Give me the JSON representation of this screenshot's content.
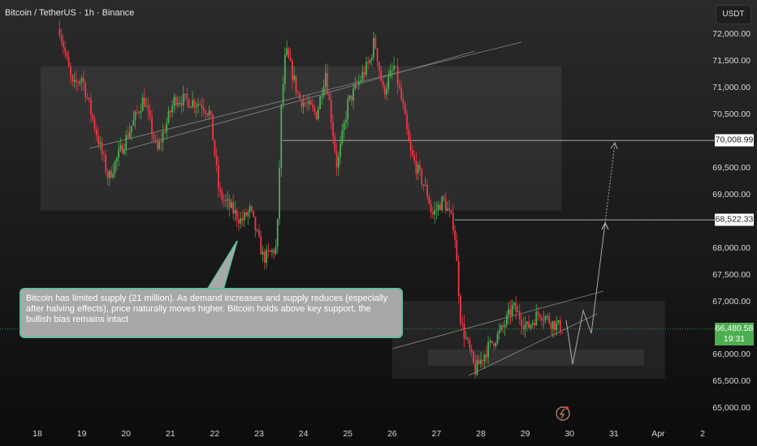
{
  "header": {
    "title": "Bitcoin / TetherUS · 1h · Binance",
    "currency": "USDT"
  },
  "colors": {
    "up": "#4caf50",
    "down": "#f23645",
    "background": "#1f1f1f",
    "annotation_border": "#5fbf9f"
  },
  "chart_data": {
    "type": "candlestick",
    "title": "Bitcoin / TetherUS · 1h · Binance",
    "x_ticks": [
      "18",
      "19",
      "20",
      "21",
      "22",
      "23",
      "24",
      "25",
      "26",
      "27",
      "28",
      "29",
      "30",
      "31",
      "Apr",
      "2"
    ],
    "y_ticks": [
      "72,000.00",
      "71,500.00",
      "71,000.00",
      "70,500.00",
      "69,500.00",
      "69,000.00",
      "68,000.00",
      "67,500.00",
      "67,000.00",
      "66,000.00",
      "65,500.00",
      "65,000.00"
    ],
    "ylim": [
      64800,
      72300
    ],
    "price_path": [
      {
        "day": 18.5,
        "price": 72100
      },
      {
        "day": 18.8,
        "price": 71000
      },
      {
        "day": 19.0,
        "price": 71200
      },
      {
        "day": 19.6,
        "price": 69300
      },
      {
        "day": 20.4,
        "price": 70800
      },
      {
        "day": 20.7,
        "price": 69800
      },
      {
        "day": 21.1,
        "price": 70800
      },
      {
        "day": 21.7,
        "price": 70700
      },
      {
        "day": 21.9,
        "price": 70500
      },
      {
        "day": 22.1,
        "price": 69000
      },
      {
        "day": 22.6,
        "price": 68500
      },
      {
        "day": 22.8,
        "price": 68700
      },
      {
        "day": 23.1,
        "price": 67800
      },
      {
        "day": 23.4,
        "price": 68000
      },
      {
        "day": 23.5,
        "price": 70600
      },
      {
        "day": 23.6,
        "price": 71700
      },
      {
        "day": 23.9,
        "price": 70800
      },
      {
        "day": 24.3,
        "price": 70500
      },
      {
        "day": 24.5,
        "price": 71300
      },
      {
        "day": 24.76,
        "price": 69500
      },
      {
        "day": 25.0,
        "price": 70700
      },
      {
        "day": 25.5,
        "price": 71500
      },
      {
        "day": 25.6,
        "price": 71900
      },
      {
        "day": 25.8,
        "price": 70900
      },
      {
        "day": 26.05,
        "price": 71400
      },
      {
        "day": 26.25,
        "price": 70600
      },
      {
        "day": 26.4,
        "price": 69800
      },
      {
        "day": 26.8,
        "price": 69000
      },
      {
        "day": 26.9,
        "price": 68600
      },
      {
        "day": 27.15,
        "price": 68900
      },
      {
        "day": 27.4,
        "price": 68400
      },
      {
        "day": 27.55,
        "price": 66600
      },
      {
        "day": 27.77,
        "price": 66000
      },
      {
        "day": 27.87,
        "price": 65700
      },
      {
        "day": 28.14,
        "price": 66100
      },
      {
        "day": 28.5,
        "price": 66500
      },
      {
        "day": 28.72,
        "price": 66900
      },
      {
        "day": 29.05,
        "price": 66500
      },
      {
        "day": 29.32,
        "price": 66800
      },
      {
        "day": 29.6,
        "price": 66600
      },
      {
        "day": 29.85,
        "price": 66480.58
      }
    ],
    "levels": [
      {
        "label": "70,008.99",
        "price": 70008.99
      },
      {
        "label": "68,522.33",
        "price": 68522.33
      }
    ],
    "current": {
      "price": "66,480.58",
      "countdown": "19:31"
    },
    "zones": [
      {
        "from_day": 18.07,
        "to_day": 29.82,
        "low": 68700,
        "high": 71400
      },
      {
        "from_day": 26.0,
        "to_day": 32.15,
        "low": 65550,
        "high": 67000
      }
    ],
    "annotation": "Bitcoin has limited supply (21 million). As demand increases and supply reduces (especially after halving effects), price naturally moves higher. Bitcoin holds above key support, the bullish bias remains intact"
  }
}
